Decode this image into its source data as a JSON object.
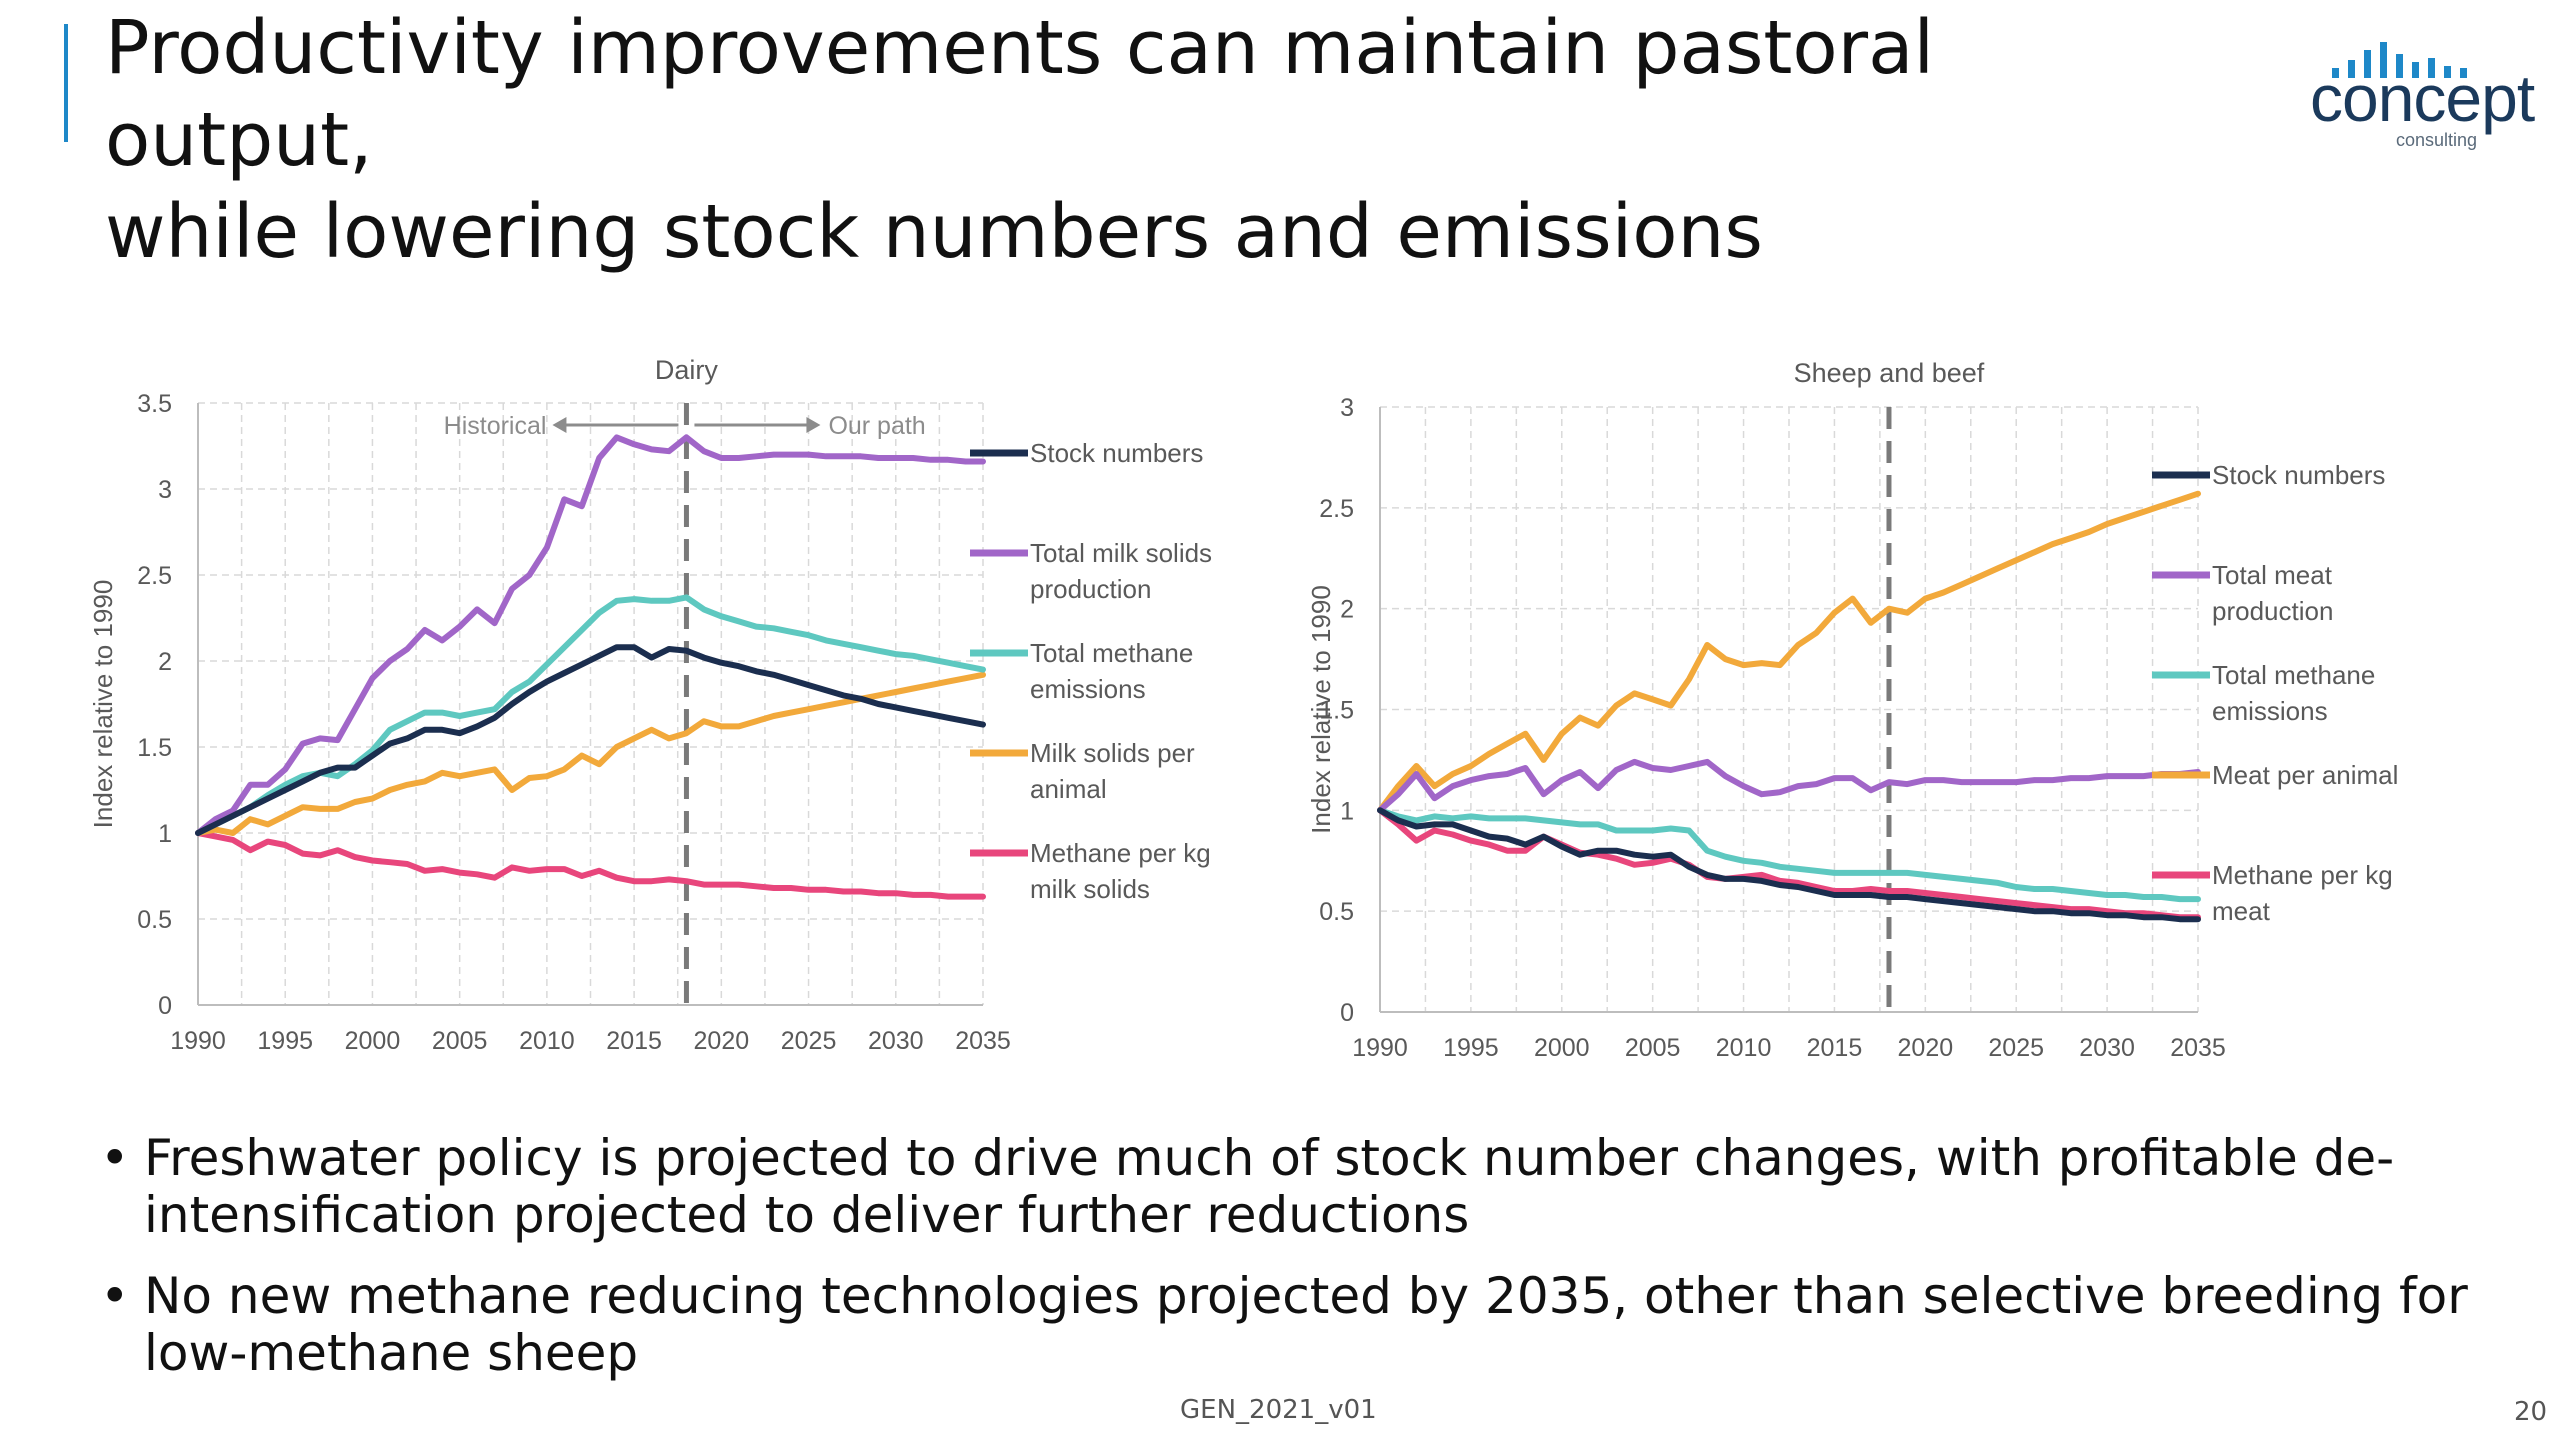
{
  "slide": {
    "title_line1": "Productivity improvements can maintain pastoral output,",
    "title_line2": "while lowering stock numbers and emissions",
    "logo": {
      "word": "concept",
      "sub": "consulting",
      "color": "#1e88c8"
    },
    "bullets": [
      "Freshwater policy is projected to drive much of stock number changes, with profitable de-intensification projected to deliver further reductions",
      "No new methane reducing technologies projected by 2035, other than selective breeding for low-methane sheep"
    ],
    "bullet_char": "•",
    "footer_code": "GEN_2021_v01",
    "page_number": "20"
  },
  "chart_data": [
    {
      "type": "line",
      "title": "Dairy",
      "ylabel": "Index relative to 1990",
      "xlabel": "",
      "xlim": [
        1990,
        2035
      ],
      "ylim": [
        0,
        3.5
      ],
      "x_ticks": [
        1990,
        1995,
        2000,
        2005,
        2010,
        2015,
        2020,
        2025,
        2030,
        2035
      ],
      "y_ticks": [
        0,
        0.5,
        1,
        1.5,
        2,
        2.5,
        3,
        3.5
      ],
      "y_tick_labels": [
        "0",
        "0.5",
        "1",
        "1.5",
        "2",
        "2.5",
        "3",
        "3.5"
      ],
      "grid": true,
      "divider_x": 2018,
      "annotations": {
        "left": "Historical",
        "right": "Our path"
      },
      "legend_position": "right",
      "x": [
        1990,
        1991,
        1992,
        1993,
        1994,
        1995,
        1996,
        1997,
        1998,
        1999,
        2000,
        2001,
        2002,
        2003,
        2004,
        2005,
        2006,
        2007,
        2008,
        2009,
        2010,
        2011,
        2012,
        2013,
        2014,
        2015,
        2016,
        2017,
        2018,
        2019,
        2020,
        2021,
        2022,
        2023,
        2024,
        2025,
        2026,
        2027,
        2028,
        2029,
        2030,
        2031,
        2032,
        2033,
        2034,
        2035
      ],
      "series": [
        {
          "name": "Stock numbers",
          "color": "#1b2e4f",
          "values": [
            1.0,
            1.05,
            1.1,
            1.15,
            1.2,
            1.25,
            1.3,
            1.35,
            1.38,
            1.38,
            1.45,
            1.52,
            1.55,
            1.6,
            1.6,
            1.58,
            1.62,
            1.67,
            1.75,
            1.82,
            1.88,
            1.93,
            1.98,
            2.03,
            2.08,
            2.08,
            2.02,
            2.07,
            2.06,
            2.02,
            1.99,
            1.97,
            1.94,
            1.92,
            1.89,
            1.86,
            1.83,
            1.8,
            1.78,
            1.75,
            1.73,
            1.71,
            1.69,
            1.67,
            1.65,
            1.63
          ]
        },
        {
          "name": "Total milk solids production",
          "color": "#a166c8",
          "values": [
            1.0,
            1.08,
            1.13,
            1.28,
            1.28,
            1.37,
            1.52,
            1.55,
            1.54,
            1.72,
            1.9,
            2.0,
            2.07,
            2.18,
            2.12,
            2.2,
            2.3,
            2.22,
            2.42,
            2.5,
            2.66,
            2.94,
            2.9,
            3.18,
            3.3,
            3.26,
            3.23,
            3.22,
            3.3,
            3.22,
            3.18,
            3.18,
            3.19,
            3.2,
            3.2,
            3.2,
            3.19,
            3.19,
            3.19,
            3.18,
            3.18,
            3.18,
            3.17,
            3.17,
            3.16,
            3.16
          ]
        },
        {
          "name": "Total methane emissions",
          "color": "#5ec8c0",
          "values": [
            1.0,
            1.05,
            1.1,
            1.15,
            1.22,
            1.28,
            1.33,
            1.35,
            1.33,
            1.4,
            1.48,
            1.6,
            1.65,
            1.7,
            1.7,
            1.68,
            1.7,
            1.72,
            1.82,
            1.88,
            1.98,
            2.08,
            2.18,
            2.28,
            2.35,
            2.36,
            2.35,
            2.35,
            2.37,
            2.3,
            2.26,
            2.23,
            2.2,
            2.19,
            2.17,
            2.15,
            2.12,
            2.1,
            2.08,
            2.06,
            2.04,
            2.03,
            2.01,
            1.99,
            1.97,
            1.95
          ]
        },
        {
          "name": "Milk solids per animal",
          "color": "#f2a93b",
          "values": [
            1.0,
            1.02,
            1.0,
            1.08,
            1.05,
            1.1,
            1.15,
            1.14,
            1.14,
            1.18,
            1.2,
            1.25,
            1.28,
            1.3,
            1.35,
            1.33,
            1.35,
            1.37,
            1.25,
            1.32,
            1.33,
            1.37,
            1.45,
            1.4,
            1.5,
            1.55,
            1.6,
            1.55,
            1.58,
            1.65,
            1.62,
            1.62,
            1.65,
            1.68,
            1.7,
            1.72,
            1.74,
            1.76,
            1.78,
            1.8,
            1.82,
            1.84,
            1.86,
            1.88,
            1.9,
            1.92
          ]
        },
        {
          "name": "Methane per kg milk solids",
          "color": "#e8467c",
          "values": [
            1.0,
            0.98,
            0.96,
            0.9,
            0.95,
            0.93,
            0.88,
            0.87,
            0.9,
            0.86,
            0.84,
            0.83,
            0.82,
            0.78,
            0.79,
            0.77,
            0.76,
            0.74,
            0.8,
            0.78,
            0.79,
            0.79,
            0.75,
            0.78,
            0.74,
            0.72,
            0.72,
            0.73,
            0.72,
            0.7,
            0.7,
            0.7,
            0.69,
            0.68,
            0.68,
            0.67,
            0.67,
            0.66,
            0.66,
            0.65,
            0.65,
            0.64,
            0.64,
            0.63,
            0.63,
            0.63
          ]
        }
      ]
    },
    {
      "type": "line",
      "title": "Sheep and beef",
      "ylabel": "Index relative to 1990",
      "xlabel": "",
      "xlim": [
        1990,
        2035
      ],
      "ylim": [
        0,
        3
      ],
      "x_ticks": [
        1990,
        1995,
        2000,
        2005,
        2010,
        2015,
        2020,
        2025,
        2030,
        2035
      ],
      "y_ticks": [
        0,
        0.5,
        1,
        1.5,
        2,
        2.5,
        3
      ],
      "y_tick_labels": [
        "0",
        "0.5",
        "1",
        "1.5",
        "2",
        "2.5",
        "3"
      ],
      "grid": true,
      "divider_x": 2018,
      "legend_position": "right",
      "x": [
        1990,
        1991,
        1992,
        1993,
        1994,
        1995,
        1996,
        1997,
        1998,
        1999,
        2000,
        2001,
        2002,
        2003,
        2004,
        2005,
        2006,
        2007,
        2008,
        2009,
        2010,
        2011,
        2012,
        2013,
        2014,
        2015,
        2016,
        2017,
        2018,
        2019,
        2020,
        2021,
        2022,
        2023,
        2024,
        2025,
        2026,
        2027,
        2028,
        2029,
        2030,
        2031,
        2032,
        2033,
        2034,
        2035
      ],
      "series": [
        {
          "name": "Stock numbers",
          "color": "#1b2e4f",
          "values": [
            1.0,
            0.95,
            0.92,
            0.93,
            0.93,
            0.9,
            0.87,
            0.86,
            0.83,
            0.87,
            0.82,
            0.78,
            0.8,
            0.8,
            0.78,
            0.77,
            0.78,
            0.72,
            0.68,
            0.66,
            0.66,
            0.65,
            0.63,
            0.62,
            0.6,
            0.58,
            0.58,
            0.58,
            0.57,
            0.57,
            0.56,
            0.55,
            0.54,
            0.53,
            0.52,
            0.51,
            0.5,
            0.5,
            0.49,
            0.49,
            0.48,
            0.48,
            0.47,
            0.47,
            0.46,
            0.46
          ]
        },
        {
          "name": "Total meat production",
          "color": "#a166c8",
          "values": [
            1.0,
            1.08,
            1.18,
            1.06,
            1.12,
            1.15,
            1.17,
            1.18,
            1.21,
            1.08,
            1.15,
            1.19,
            1.11,
            1.2,
            1.24,
            1.21,
            1.2,
            1.22,
            1.24,
            1.17,
            1.12,
            1.08,
            1.09,
            1.12,
            1.13,
            1.16,
            1.16,
            1.1,
            1.14,
            1.13,
            1.15,
            1.15,
            1.14,
            1.14,
            1.14,
            1.14,
            1.15,
            1.15,
            1.16,
            1.16,
            1.17,
            1.17,
            1.17,
            1.18,
            1.18,
            1.19
          ]
        },
        {
          "name": "Total methane emissions",
          "color": "#5ec8c0",
          "values": [
            1.0,
            0.97,
            0.95,
            0.97,
            0.96,
            0.97,
            0.96,
            0.96,
            0.96,
            0.95,
            0.94,
            0.93,
            0.93,
            0.9,
            0.9,
            0.9,
            0.91,
            0.9,
            0.8,
            0.77,
            0.75,
            0.74,
            0.72,
            0.71,
            0.7,
            0.69,
            0.69,
            0.69,
            0.69,
            0.69,
            0.68,
            0.67,
            0.66,
            0.65,
            0.64,
            0.62,
            0.61,
            0.61,
            0.6,
            0.59,
            0.58,
            0.58,
            0.57,
            0.57,
            0.56,
            0.56
          ]
        },
        {
          "name": "Meat per animal",
          "color": "#f2a93b",
          "values": [
            1.0,
            1.12,
            1.22,
            1.12,
            1.18,
            1.22,
            1.28,
            1.33,
            1.38,
            1.25,
            1.38,
            1.46,
            1.42,
            1.52,
            1.58,
            1.55,
            1.52,
            1.65,
            1.82,
            1.75,
            1.72,
            1.73,
            1.72,
            1.82,
            1.88,
            1.98,
            2.05,
            1.93,
            2.0,
            1.98,
            2.05,
            2.08,
            2.12,
            2.16,
            2.2,
            2.24,
            2.28,
            2.32,
            2.35,
            2.38,
            2.42,
            2.45,
            2.48,
            2.51,
            2.54,
            2.57
          ]
        },
        {
          "name": "Methane per kg meat",
          "color": "#e8467c",
          "values": [
            1.0,
            0.93,
            0.85,
            0.9,
            0.88,
            0.85,
            0.83,
            0.8,
            0.8,
            0.87,
            0.83,
            0.79,
            0.78,
            0.76,
            0.73,
            0.74,
            0.76,
            0.73,
            0.67,
            0.66,
            0.67,
            0.68,
            0.65,
            0.64,
            0.62,
            0.6,
            0.6,
            0.61,
            0.6,
            0.6,
            0.59,
            0.58,
            0.57,
            0.56,
            0.55,
            0.54,
            0.53,
            0.52,
            0.51,
            0.51,
            0.5,
            0.49,
            0.49,
            0.48,
            0.47,
            0.47
          ]
        }
      ]
    }
  ],
  "legends": {
    "dairy": [
      {
        "line1": "Stock numbers",
        "line2": ""
      },
      {
        "line1": "Total milk solids",
        "line2": "production"
      },
      {
        "line1": "Total methane",
        "line2": "emissions"
      },
      {
        "line1": "Milk solids per",
        "line2": "animal"
      },
      {
        "line1": "Methane per kg",
        "line2": "milk solids"
      }
    ],
    "sheep": [
      {
        "line1": "Stock numbers",
        "line2": ""
      },
      {
        "line1": "Total meat",
        "line2": "production"
      },
      {
        "line1": "Total methane",
        "line2": "emissions"
      },
      {
        "line1": "Meat per animal",
        "line2": ""
      },
      {
        "line1": "Methane per kg",
        "line2": "meat"
      }
    ]
  }
}
